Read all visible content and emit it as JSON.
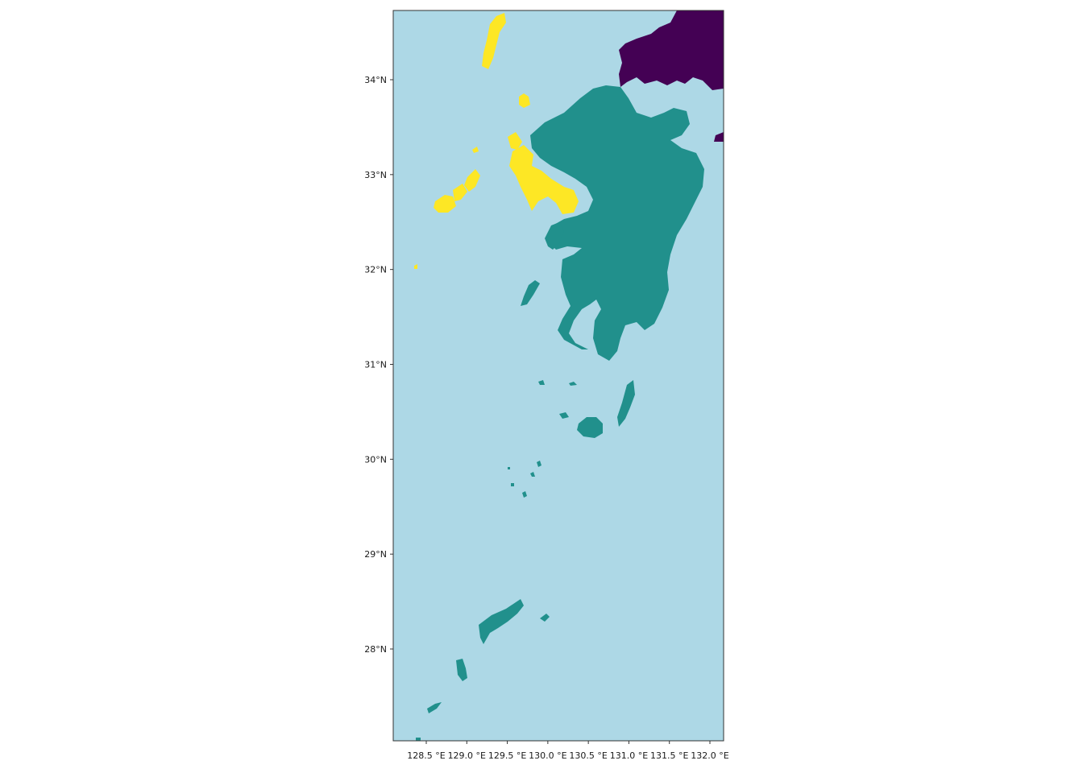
{
  "map": {
    "colors": {
      "sea": "#add8e6",
      "region_kyushu": "#21908c",
      "region_nagasaki_islands": "#fde725",
      "region_honshu": "#440154",
      "frame": "#333333"
    },
    "x_ticks": [
      {
        "lon": 128.5,
        "label": "128.5 °E"
      },
      {
        "lon": 129.0,
        "label": "129.0 °E"
      },
      {
        "lon": 129.5,
        "label": "129.5 °E"
      },
      {
        "lon": 130.0,
        "label": "130.0 °E"
      },
      {
        "lon": 130.5,
        "label": "130.5 °E"
      },
      {
        "lon": 131.0,
        "label": "131.0 °E"
      },
      {
        "lon": 131.5,
        "label": "131.5 °E"
      },
      {
        "lon": 132.0,
        "label": "132.0 °E"
      }
    ],
    "y_ticks": [
      {
        "lat": 34,
        "label": "34°N"
      },
      {
        "lat": 33,
        "label": "33°N"
      },
      {
        "lat": 32,
        "label": "32°N"
      },
      {
        "lat": 31,
        "label": "31°N"
      },
      {
        "lat": 30,
        "label": "30°N"
      },
      {
        "lat": 29,
        "label": "29°N"
      },
      {
        "lat": 28,
        "label": "28°N"
      }
    ]
  }
}
